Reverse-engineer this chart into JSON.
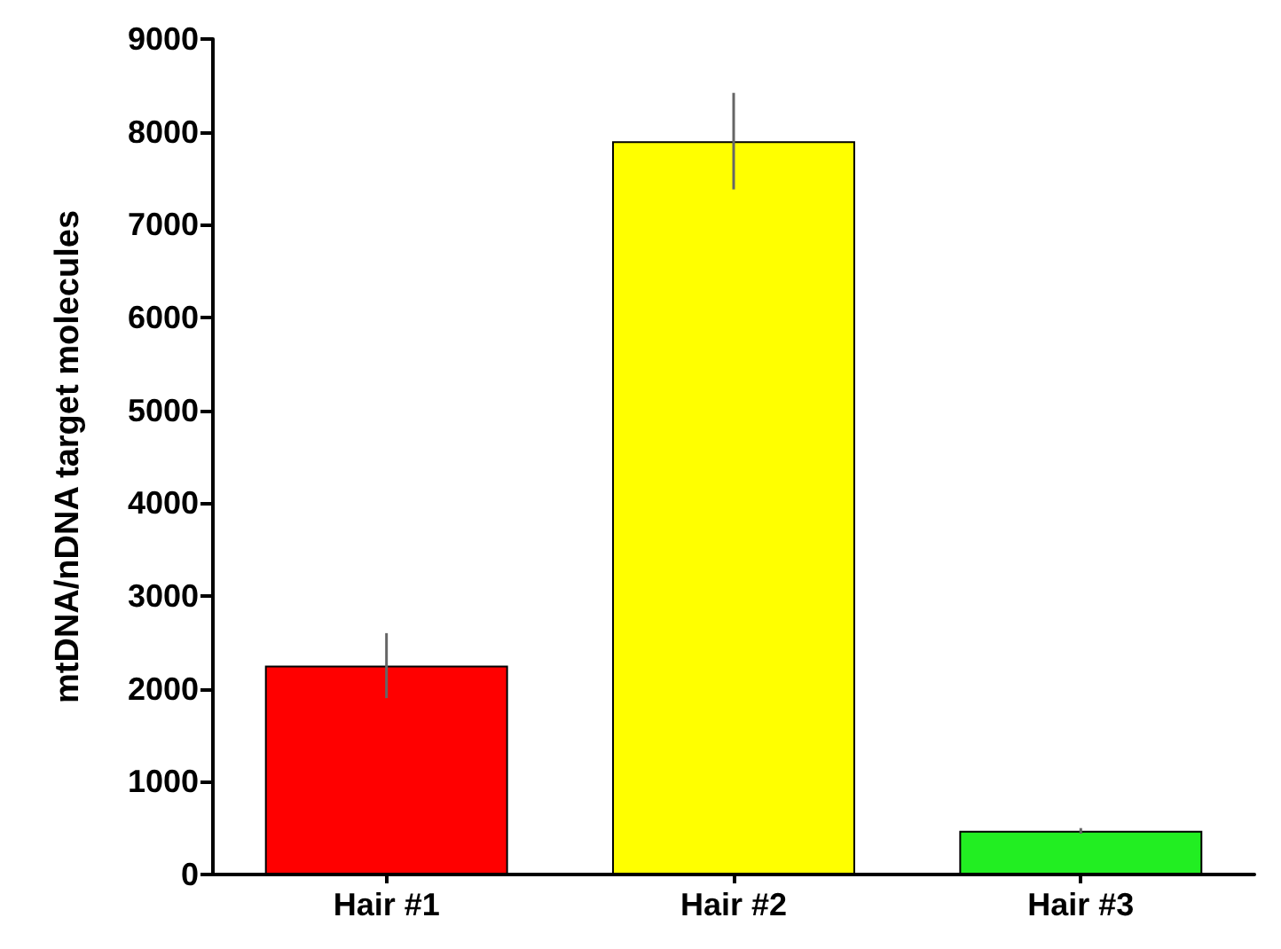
{
  "chart_data": {
    "type": "bar",
    "ylabel": "mtDNA/nDNA target molecules",
    "categories": [
      "Hair #1",
      "Hair #2",
      "Hair #3"
    ],
    "values": [
      2250,
      7900,
      470
    ],
    "colors": [
      "#ff0000",
      "#ffff00",
      "#22ee22"
    ],
    "errors": [
      350,
      520,
      30
    ],
    "ylim": [
      0,
      9000
    ],
    "yticks": [
      0,
      1000,
      2000,
      3000,
      4000,
      5000,
      6000,
      7000,
      8000,
      9000
    ],
    "grid": false
  }
}
